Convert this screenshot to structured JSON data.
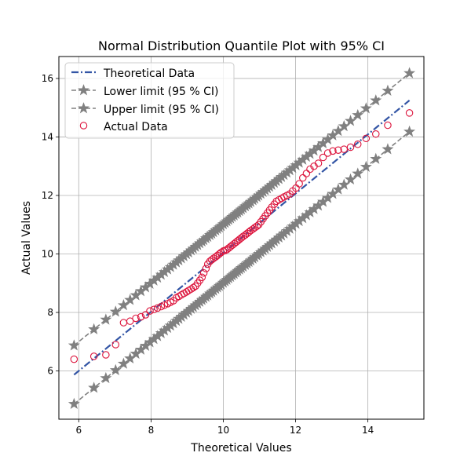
{
  "chart_data": {
    "type": "scatter",
    "title": "Normal Distribution Quantile Plot with 95% CI",
    "xlabel": "Theoretical Values",
    "ylabel": "Actual Values",
    "xlim": [
      5.45,
      15.55
    ],
    "ylim": [
      4.35,
      16.75
    ],
    "xticks": [
      6,
      8,
      10,
      12,
      14
    ],
    "yticks": [
      6,
      8,
      10,
      12,
      14,
      16
    ],
    "grid": true,
    "legend_position": "top-left",
    "colors": {
      "theoretical": "#3355a5",
      "limits": "#808080",
      "actual": "#dc143c",
      "grid": "#b0b0b0"
    },
    "series": [
      {
        "name": "Theoretical Data",
        "kind": "line-dashdot",
        "x": [
          5.87,
          15.15
        ],
        "y": [
          5.87,
          15.25
        ]
      },
      {
        "name": "Lower limit (95 % CI)",
        "kind": "line-star",
        "x": [
          5.87,
          15.15
        ],
        "y": [
          4.87,
          14.18
        ]
      },
      {
        "name": "Upper limit (95 % CI)",
        "kind": "line-star",
        "x": [
          5.87,
          15.15
        ],
        "y": [
          6.87,
          16.18
        ]
      },
      {
        "name": "Actual Data",
        "kind": "scatter-hollow",
        "x": [
          5.87,
          6.42,
          6.75,
          7.02,
          7.24,
          7.42,
          7.58,
          7.72,
          7.85,
          7.97,
          8.08,
          8.18,
          8.28,
          8.37,
          8.46,
          8.54,
          8.62,
          8.7,
          8.77,
          8.84,
          8.91,
          8.98,
          9.04,
          9.11,
          9.17,
          9.23,
          9.29,
          9.35,
          9.41,
          9.46,
          9.52,
          9.57,
          9.63,
          9.68,
          9.73,
          9.79,
          9.84,
          9.89,
          9.94,
          10.0,
          10.05,
          10.1,
          10.15,
          10.2,
          10.25,
          10.3,
          10.35,
          10.4,
          10.45,
          10.5,
          10.55,
          10.61,
          10.66,
          10.71,
          10.76,
          10.82,
          10.87,
          10.93,
          10.98,
          11.04,
          11.1,
          11.16,
          11.22,
          11.28,
          11.34,
          11.41,
          11.47,
          11.54,
          11.61,
          11.68,
          11.76,
          11.84,
          11.92,
          12.01,
          12.1,
          12.2,
          12.3,
          12.4,
          12.51,
          12.63,
          12.76,
          12.89,
          13.03,
          13.18,
          13.34,
          13.52,
          13.72,
          13.95,
          14.22,
          14.55,
          15.15
        ],
        "y": [
          6.4,
          6.5,
          6.55,
          6.9,
          7.65,
          7.7,
          7.8,
          7.85,
          7.92,
          8.05,
          8.1,
          8.15,
          8.2,
          8.25,
          8.3,
          8.35,
          8.4,
          8.5,
          8.55,
          8.6,
          8.65,
          8.7,
          8.75,
          8.8,
          8.85,
          8.9,
          9.0,
          9.1,
          9.2,
          9.35,
          9.5,
          9.65,
          9.75,
          9.8,
          9.85,
          9.9,
          9.95,
          10.0,
          10.05,
          10.1,
          10.12,
          10.15,
          10.2,
          10.25,
          10.3,
          10.35,
          10.4,
          10.45,
          10.5,
          10.55,
          10.6,
          10.65,
          10.7,
          10.75,
          10.8,
          10.85,
          10.9,
          10.95,
          11.0,
          11.1,
          11.2,
          11.3,
          11.4,
          11.5,
          11.6,
          11.7,
          11.8,
          11.85,
          11.9,
          11.95,
          12.0,
          12.05,
          12.15,
          12.25,
          12.4,
          12.6,
          12.75,
          12.9,
          13.0,
          13.1,
          13.3,
          13.45,
          13.52,
          13.55,
          13.58,
          13.65,
          13.75,
          13.95,
          14.1,
          14.4,
          14.82
        ]
      }
    ]
  }
}
